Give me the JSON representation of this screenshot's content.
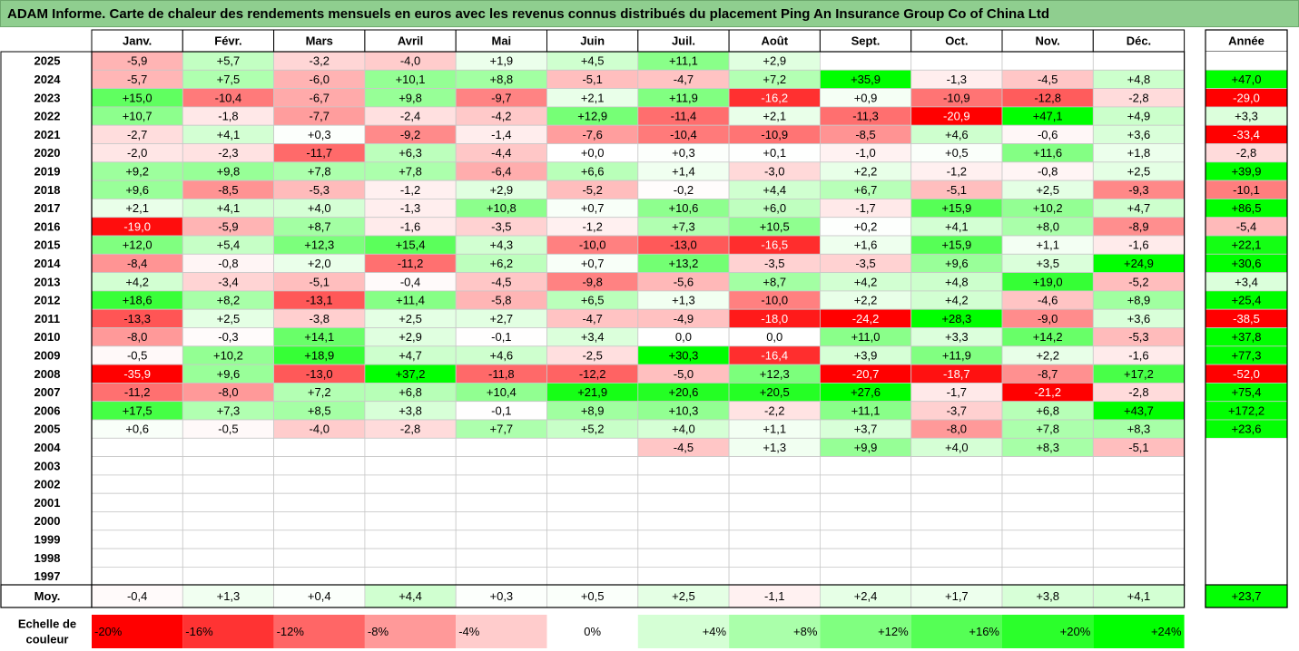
{
  "title": "ADAM Informe. Carte de chaleur des rendements mensuels en euros avec les revenus connus distribués du placement Ping An Insurance Group Co of China Ltd",
  "colors": {
    "title_bg": "#8fce8f",
    "strong_negative": "#ff0000",
    "strong_positive": "#00ff00"
  },
  "chart_data": {
    "type": "heatmap",
    "months": [
      "Janv.",
      "Févr.",
      "Mars",
      "Avril",
      "Mai",
      "Juin",
      "Juil.",
      "Août",
      "Sept.",
      "Oct.",
      "Nov.",
      "Déc."
    ],
    "year_column_label": "Année",
    "average_row_label": "Moy.",
    "rows": [
      {
        "year": "2025",
        "values": [
          "-5,9",
          "+5,7",
          "-3,2",
          "-4,0",
          "+1,9",
          "+4,5",
          "+11,1",
          "+2,9",
          "",
          "",
          "",
          ""
        ],
        "annual": ""
      },
      {
        "year": "2024",
        "values": [
          "-5,7",
          "+7,5",
          "-6,0",
          "+10,1",
          "+8,8",
          "-5,1",
          "-4,7",
          "+7,2",
          "+35,9",
          "-1,3",
          "-4,5",
          "+4,8"
        ],
        "annual": "+47,0"
      },
      {
        "year": "2023",
        "values": [
          "+15,0",
          "-10,4",
          "-6,7",
          "+9,8",
          "-9,7",
          "+2,1",
          "+11,9",
          "-16,2",
          "+0,9",
          "-10,9",
          "-12,8",
          "-2,8"
        ],
        "annual": "-29,0"
      },
      {
        "year": "2022",
        "values": [
          "+10,7",
          "-1,8",
          "-7,7",
          "-2,4",
          "-4,2",
          "+12,9",
          "-11,4",
          "+2,1",
          "-11,3",
          "-20,9",
          "+47,1",
          "+4,9"
        ],
        "annual": "+3,3"
      },
      {
        "year": "2021",
        "values": [
          "-2,7",
          "+4,1",
          "+0,3",
          "-9,2",
          "-1,4",
          "-7,6",
          "-10,4",
          "-10,9",
          "-8,5",
          "+4,6",
          "-0,6",
          "+3,6"
        ],
        "annual": "-33,4"
      },
      {
        "year": "2020",
        "values": [
          "-2,0",
          "-2,3",
          "-11,7",
          "+6,3",
          "-4,4",
          "+0,0",
          "+0,3",
          "+0,1",
          "-1,0",
          "+0,5",
          "+11,6",
          "+1,8"
        ],
        "annual": "-2,8"
      },
      {
        "year": "2019",
        "values": [
          "+9,2",
          "+9,8",
          "+7,8",
          "+7,8",
          "-6,4",
          "+6,6",
          "+1,4",
          "-3,0",
          "+2,2",
          "-1,2",
          "-0,8",
          "+2,5"
        ],
        "annual": "+39,9"
      },
      {
        "year": "2018",
        "values": [
          "+9,6",
          "-8,5",
          "-5,3",
          "-1,2",
          "+2,9",
          "-5,2",
          "-0,2",
          "+4,4",
          "+6,7",
          "-5,1",
          "+2,5",
          "-9,3"
        ],
        "annual": "-10,1"
      },
      {
        "year": "2017",
        "values": [
          "+2,1",
          "+4,1",
          "+4,0",
          "-1,3",
          "+10,8",
          "+0,7",
          "+10,6",
          "+6,0",
          "-1,7",
          "+15,9",
          "+10,2",
          "+4,7"
        ],
        "annual": "+86,5"
      },
      {
        "year": "2016",
        "values": [
          "-19,0",
          "-5,9",
          "+8,7",
          "-1,6",
          "-3,5",
          "-1,2",
          "+7,3",
          "+10,5",
          "+0,2",
          "+4,1",
          "+8,0",
          "-8,9"
        ],
        "annual": "-5,4"
      },
      {
        "year": "2015",
        "values": [
          "+12,0",
          "+5,4",
          "+12,3",
          "+15,4",
          "+4,3",
          "-10,0",
          "-13,0",
          "-16,5",
          "+1,6",
          "+15,9",
          "+1,1",
          "-1,6"
        ],
        "annual": "+22,1"
      },
      {
        "year": "2014",
        "values": [
          "-8,4",
          "-0,8",
          "+2,0",
          "-11,2",
          "+6,2",
          "+0,7",
          "+13,2",
          "-3,5",
          "-3,5",
          "+9,6",
          "+3,5",
          "+24,9"
        ],
        "annual": "+30,6"
      },
      {
        "year": "2013",
        "values": [
          "+4,2",
          "-3,4",
          "-5,1",
          "-0,4",
          "-4,5",
          "-9,8",
          "-5,6",
          "+8,7",
          "+4,2",
          "+4,8",
          "+19,0",
          "-5,2"
        ],
        "annual": "+3,4"
      },
      {
        "year": "2012",
        "values": [
          "+18,6",
          "+8,2",
          "-13,1",
          "+11,4",
          "-5,8",
          "+6,5",
          "+1,3",
          "-10,0",
          "+2,2",
          "+4,2",
          "-4,6",
          "+8,9"
        ],
        "annual": "+25,4"
      },
      {
        "year": "2011",
        "values": [
          "-13,3",
          "+2,5",
          "-3,8",
          "+2,5",
          "+2,7",
          "-4,7",
          "-4,9",
          "-18,0",
          "-24,2",
          "+28,3",
          "-9,0",
          "+3,6"
        ],
        "annual": "-38,5"
      },
      {
        "year": "2010",
        "values": [
          "-8,0",
          "-0,3",
          "+14,1",
          "+2,9",
          "-0,1",
          "+3,4",
          "0,0",
          "0,0",
          "+11,0",
          "+3,3",
          "+14,2",
          "-5,3"
        ],
        "annual": "+37,8"
      },
      {
        "year": "2009",
        "values": [
          "-0,5",
          "+10,2",
          "+18,9",
          "+4,7",
          "+4,6",
          "-2,5",
          "+30,3",
          "-16,4",
          "+3,9",
          "+11,9",
          "+2,2",
          "-1,6"
        ],
        "annual": "+77,3"
      },
      {
        "year": "2008",
        "values": [
          "-35,9",
          "+9,6",
          "-13,0",
          "+37,2",
          "-11,8",
          "-12,2",
          "-5,0",
          "+12,3",
          "-20,7",
          "-18,7",
          "-8,7",
          "+17,2"
        ],
        "annual": "-52,0"
      },
      {
        "year": "2007",
        "values": [
          "-11,2",
          "-8,0",
          "+7,2",
          "+6,8",
          "+10,4",
          "+21,9",
          "+20,6",
          "+20,5",
          "+27,6",
          "-1,7",
          "-21,2",
          "-2,8"
        ],
        "annual": "+75,4"
      },
      {
        "year": "2006",
        "values": [
          "+17,5",
          "+7,3",
          "+8,5",
          "+3,8",
          "-0,1",
          "+8,9",
          "+10,3",
          "-2,2",
          "+11,1",
          "-3,7",
          "+6,8",
          "+43,7"
        ],
        "annual": "+172,2"
      },
      {
        "year": "2005",
        "values": [
          "+0,6",
          "-0,5",
          "-4,0",
          "-2,8",
          "+7,7",
          "+5,2",
          "+4,0",
          "+1,1",
          "+3,7",
          "-8,0",
          "+7,8",
          "+8,3"
        ],
        "annual": "+23,6"
      },
      {
        "year": "2004",
        "values": [
          "",
          "",
          "",
          "",
          "",
          "",
          "-4,5",
          "+1,3",
          "+9,9",
          "+4,0",
          "+8,3",
          "-5,1"
        ],
        "annual": ""
      },
      {
        "year": "2003",
        "values": [
          "",
          "",
          "",
          "",
          "",
          "",
          "",
          "",
          "",
          "",
          "",
          ""
        ],
        "annual": ""
      },
      {
        "year": "2002",
        "values": [
          "",
          "",
          "",
          "",
          "",
          "",
          "",
          "",
          "",
          "",
          "",
          ""
        ],
        "annual": ""
      },
      {
        "year": "2001",
        "values": [
          "",
          "",
          "",
          "",
          "",
          "",
          "",
          "",
          "",
          "",
          "",
          ""
        ],
        "annual": ""
      },
      {
        "year": "2000",
        "values": [
          "",
          "",
          "",
          "",
          "",
          "",
          "",
          "",
          "",
          "",
          "",
          ""
        ],
        "annual": ""
      },
      {
        "year": "1999",
        "values": [
          "",
          "",
          "",
          "",
          "",
          "",
          "",
          "",
          "",
          "",
          "",
          ""
        ],
        "annual": ""
      },
      {
        "year": "1998",
        "values": [
          "",
          "",
          "",
          "",
          "",
          "",
          "",
          "",
          "",
          "",
          "",
          ""
        ],
        "annual": ""
      },
      {
        "year": "1997",
        "values": [
          "",
          "",
          "",
          "",
          "",
          "",
          "",
          "",
          "",
          "",
          "",
          ""
        ],
        "annual": ""
      }
    ],
    "averages": [
      "-0,4",
      "+1,3",
      "+0,4",
      "+4,4",
      "+0,3",
      "+0,5",
      "+2,5",
      "-1,1",
      "+2,4",
      "+1,7",
      "+3,8",
      "+4,1"
    ],
    "average_annual": "+23,7",
    "scale_label": "Echelle de couleur",
    "scale": [
      "-20%",
      "-16%",
      "-12%",
      "-8%",
      "-4%",
      "0%",
      "+4%",
      "+8%",
      "+12%",
      "+16%",
      "+20%",
      "+24%"
    ]
  }
}
